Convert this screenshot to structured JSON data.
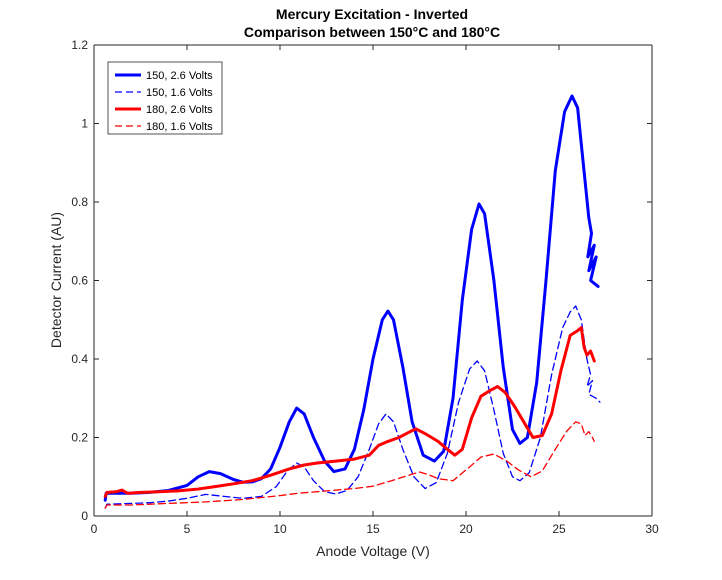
{
  "chart_data": {
    "type": "line",
    "title": [
      "Mercury Excitation - Inverted",
      "Comparison between 150°C and 180°C"
    ],
    "xlabel": "Anode Voltage (V)",
    "ylabel": "Detector Current (AU)",
    "xlim": [
      0,
      30
    ],
    "ylim": [
      0,
      1.2
    ],
    "xticks": [
      0,
      5,
      10,
      15,
      20,
      25,
      30
    ],
    "xtick_labels": [
      "0",
      "5",
      "10",
      "15",
      "20",
      "25",
      "30"
    ],
    "yticks": [
      0,
      0.2,
      0.4,
      0.6,
      0.8,
      1.0,
      1.2
    ],
    "ytick_labels": [
      "0",
      "0.2",
      "0.4",
      "0.6",
      "0.8",
      "1",
      "1.2"
    ],
    "grid": false,
    "legend_position": "top-left",
    "series": [
      {
        "name": "150, 2.6 Volts",
        "color": "#0000ff",
        "style": "solid",
        "width": 3,
        "points": [
          [
            0.6,
            0.04
          ],
          [
            0.65,
            0.058
          ],
          [
            2,
            0.058
          ],
          [
            3,
            0.06
          ],
          [
            4,
            0.065
          ],
          [
            5,
            0.078
          ],
          [
            5.6,
            0.1
          ],
          [
            6.2,
            0.113
          ],
          [
            6.8,
            0.108
          ],
          [
            7.5,
            0.093
          ],
          [
            8,
            0.086
          ],
          [
            8.5,
            0.087
          ],
          [
            9,
            0.095
          ],
          [
            9.5,
            0.12
          ],
          [
            10,
            0.175
          ],
          [
            10.5,
            0.24
          ],
          [
            10.9,
            0.275
          ],
          [
            11.3,
            0.26
          ],
          [
            11.8,
            0.2
          ],
          [
            12.4,
            0.14
          ],
          [
            12.9,
            0.113
          ],
          [
            13.5,
            0.12
          ],
          [
            14,
            0.17
          ],
          [
            14.5,
            0.27
          ],
          [
            15,
            0.4
          ],
          [
            15.5,
            0.5
          ],
          [
            15.8,
            0.522
          ],
          [
            16.1,
            0.5
          ],
          [
            16.6,
            0.38
          ],
          [
            17.1,
            0.24
          ],
          [
            17.7,
            0.155
          ],
          [
            18.3,
            0.14
          ],
          [
            18.8,
            0.165
          ],
          [
            19.3,
            0.3
          ],
          [
            19.8,
            0.55
          ],
          [
            20.3,
            0.73
          ],
          [
            20.7,
            0.795
          ],
          [
            21.0,
            0.77
          ],
          [
            21.5,
            0.6
          ],
          [
            22.0,
            0.38
          ],
          [
            22.5,
            0.22
          ],
          [
            22.9,
            0.185
          ],
          [
            23.3,
            0.2
          ],
          [
            23.8,
            0.34
          ],
          [
            24.3,
            0.6
          ],
          [
            24.8,
            0.88
          ],
          [
            25.3,
            1.03
          ],
          [
            25.7,
            1.07
          ],
          [
            26.0,
            1.04
          ],
          [
            26.3,
            0.9
          ],
          [
            26.6,
            0.76
          ],
          [
            26.75,
            0.72
          ],
          [
            26.55,
            0.66
          ],
          [
            26.9,
            0.69
          ],
          [
            26.6,
            0.625
          ],
          [
            27.0,
            0.66
          ],
          [
            26.7,
            0.6
          ],
          [
            27.1,
            0.585
          ]
        ]
      },
      {
        "name": "150, 1.6 Volts",
        "color": "#0000ff",
        "style": "dashed",
        "width": 1.3,
        "points": [
          [
            0.6,
            0.02
          ],
          [
            0.7,
            0.03
          ],
          [
            2,
            0.032
          ],
          [
            3,
            0.034
          ],
          [
            4,
            0.038
          ],
          [
            5,
            0.045
          ],
          [
            6,
            0.055
          ],
          [
            7,
            0.05
          ],
          [
            8,
            0.045
          ],
          [
            9,
            0.05
          ],
          [
            9.8,
            0.075
          ],
          [
            10.4,
            0.115
          ],
          [
            10.9,
            0.135
          ],
          [
            11.3,
            0.125
          ],
          [
            11.8,
            0.09
          ],
          [
            12.4,
            0.062
          ],
          [
            13,
            0.056
          ],
          [
            13.6,
            0.065
          ],
          [
            14.2,
            0.1
          ],
          [
            14.8,
            0.17
          ],
          [
            15.3,
            0.235
          ],
          [
            15.7,
            0.26
          ],
          [
            16.1,
            0.24
          ],
          [
            16.6,
            0.17
          ],
          [
            17.2,
            0.1
          ],
          [
            17.8,
            0.07
          ],
          [
            18.4,
            0.085
          ],
          [
            19,
            0.16
          ],
          [
            19.6,
            0.29
          ],
          [
            20.2,
            0.375
          ],
          [
            20.6,
            0.395
          ],
          [
            21,
            0.37
          ],
          [
            21.5,
            0.27
          ],
          [
            22,
            0.16
          ],
          [
            22.5,
            0.1
          ],
          [
            22.9,
            0.09
          ],
          [
            23.4,
            0.11
          ],
          [
            24,
            0.2
          ],
          [
            24.6,
            0.36
          ],
          [
            25.2,
            0.48
          ],
          [
            25.6,
            0.52
          ],
          [
            25.9,
            0.535
          ],
          [
            26.2,
            0.5
          ],
          [
            26.5,
            0.4
          ],
          [
            26.7,
            0.36
          ],
          [
            26.5,
            0.33
          ],
          [
            26.8,
            0.345
          ],
          [
            26.6,
            0.31
          ],
          [
            27,
            0.3
          ],
          [
            27.2,
            0.29
          ]
        ]
      },
      {
        "name": "180, 2.6 Volts",
        "color": "#ff0000",
        "style": "solid",
        "width": 3,
        "points": [
          [
            0.6,
            0.05
          ],
          [
            0.7,
            0.06
          ],
          [
            1.2,
            0.062
          ],
          [
            1.5,
            0.066
          ],
          [
            1.8,
            0.058
          ],
          [
            2.5,
            0.06
          ],
          [
            3.5,
            0.062
          ],
          [
            4.5,
            0.064
          ],
          [
            5.5,
            0.068
          ],
          [
            6.5,
            0.075
          ],
          [
            7.5,
            0.082
          ],
          [
            8.5,
            0.09
          ],
          [
            9.5,
            0.104
          ],
          [
            10.5,
            0.12
          ],
          [
            11.3,
            0.13
          ],
          [
            12,
            0.135
          ],
          [
            13,
            0.14
          ],
          [
            14,
            0.145
          ],
          [
            14.8,
            0.155
          ],
          [
            15.3,
            0.18
          ],
          [
            15.8,
            0.19
          ],
          [
            16.4,
            0.2
          ],
          [
            17.0,
            0.215
          ],
          [
            17.3,
            0.222
          ],
          [
            17.8,
            0.21
          ],
          [
            18.5,
            0.19
          ],
          [
            19.0,
            0.17
          ],
          [
            19.4,
            0.155
          ],
          [
            19.8,
            0.17
          ],
          [
            20.3,
            0.25
          ],
          [
            20.8,
            0.305
          ],
          [
            21.3,
            0.32
          ],
          [
            21.7,
            0.33
          ],
          [
            22.1,
            0.315
          ],
          [
            22.6,
            0.28
          ],
          [
            23.1,
            0.24
          ],
          [
            23.6,
            0.2
          ],
          [
            24.1,
            0.205
          ],
          [
            24.6,
            0.26
          ],
          [
            25.1,
            0.37
          ],
          [
            25.6,
            0.46
          ],
          [
            26.0,
            0.472
          ],
          [
            26.2,
            0.48
          ],
          [
            26.35,
            0.43
          ],
          [
            26.5,
            0.41
          ],
          [
            26.7,
            0.42
          ],
          [
            26.9,
            0.395
          ]
        ]
      },
      {
        "name": "180, 1.6 Volts",
        "color": "#ff0000",
        "style": "dashed",
        "width": 1.3,
        "points": [
          [
            0.6,
            0.02
          ],
          [
            0.7,
            0.028
          ],
          [
            2,
            0.028
          ],
          [
            4,
            0.032
          ],
          [
            6,
            0.036
          ],
          [
            8,
            0.042
          ],
          [
            10,
            0.052
          ],
          [
            11,
            0.058
          ],
          [
            12,
            0.062
          ],
          [
            13,
            0.066
          ],
          [
            14,
            0.07
          ],
          [
            15,
            0.076
          ],
          [
            16,
            0.09
          ],
          [
            17,
            0.105
          ],
          [
            17.5,
            0.112
          ],
          [
            18,
            0.105
          ],
          [
            18.5,
            0.095
          ],
          [
            19.3,
            0.09
          ],
          [
            20.2,
            0.125
          ],
          [
            20.8,
            0.15
          ],
          [
            21.5,
            0.158
          ],
          [
            22.2,
            0.14
          ],
          [
            22.8,
            0.118
          ],
          [
            23.5,
            0.1
          ],
          [
            24.1,
            0.115
          ],
          [
            24.8,
            0.17
          ],
          [
            25.4,
            0.215
          ],
          [
            25.9,
            0.24
          ],
          [
            26.2,
            0.235
          ],
          [
            26.4,
            0.205
          ],
          [
            26.6,
            0.215
          ],
          [
            26.8,
            0.2
          ],
          [
            26.9,
            0.19
          ]
        ]
      }
    ]
  }
}
